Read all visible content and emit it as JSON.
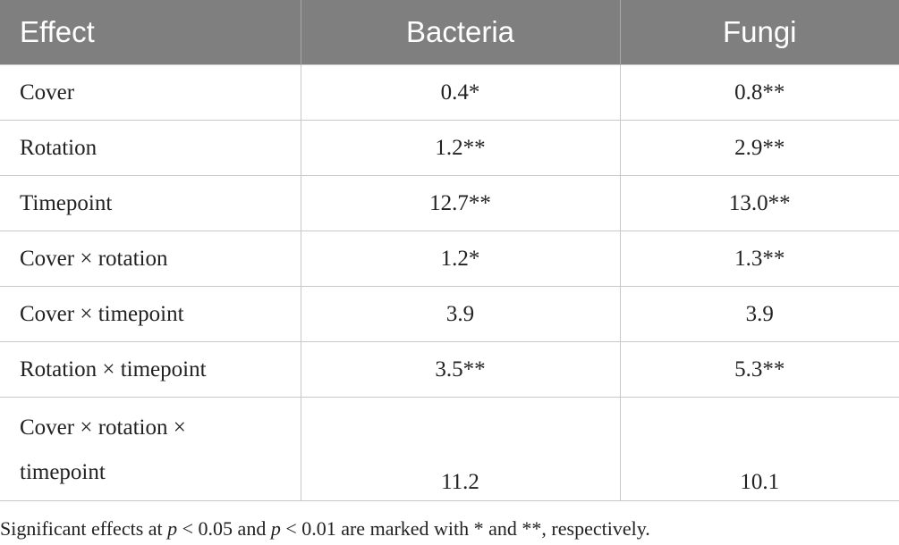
{
  "table": {
    "header": [
      "Effect",
      "Bacteria",
      "Fungi"
    ],
    "rows": [
      [
        "Cover",
        "0.4*",
        "0.8**"
      ],
      [
        "Rotation",
        "1.2**",
        "2.9**"
      ],
      [
        "Timepoint",
        "12.7**",
        "13.0**"
      ],
      [
        "Cover × rotation",
        "1.2*",
        "1.3**"
      ],
      [
        "Cover × timepoint",
        "3.9",
        "3.9"
      ],
      [
        "Rotation × timepoint",
        "3.5**",
        "5.3**"
      ],
      [
        "Cover × rotation × timepoint",
        "11.2",
        "10.1"
      ]
    ]
  },
  "footnote": [
    "Significant effects at ",
    "p",
    " < 0.05 and ",
    "p",
    " < 0.01 are marked with * and **, respectively."
  ]
}
